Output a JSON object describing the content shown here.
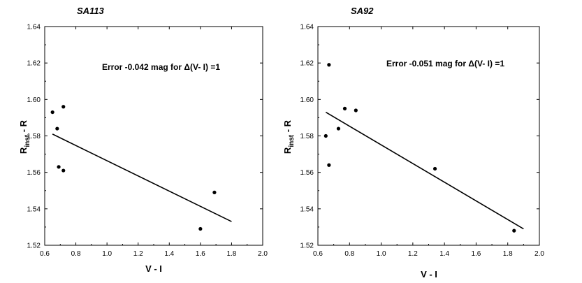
{
  "chart_data": [
    {
      "type": "scatter",
      "title": "SA113",
      "xlabel": "V - I",
      "ylabel_main": "R",
      "ylabel_sub": "inst",
      "ylabel_rest": " - R",
      "xlim": [
        0.6,
        2.0
      ],
      "ylim": [
        1.52,
        1.64
      ],
      "xticks": [
        "0.6",
        "0.8",
        "1.0",
        "1.2",
        "1.4",
        "1.6",
        "1.8",
        "2.0"
      ],
      "yticks": [
        "1.52",
        "1.54",
        "1.56",
        "1.58",
        "1.60",
        "1.62",
        "1.64"
      ],
      "annotation": "Error -0.042 mag for Δ(V- I) =1",
      "points": [
        {
          "x": 0.65,
          "y": 1.593
        },
        {
          "x": 0.68,
          "y": 1.584
        },
        {
          "x": 0.72,
          "y": 1.596
        },
        {
          "x": 0.69,
          "y": 1.563
        },
        {
          "x": 0.72,
          "y": 1.561
        },
        {
          "x": 1.6,
          "y": 1.529
        },
        {
          "x": 1.69,
          "y": 1.549
        }
      ],
      "fit": {
        "x": [
          0.65,
          1.8
        ],
        "y": [
          1.581,
          1.533
        ]
      },
      "grid": false
    },
    {
      "type": "scatter",
      "title": "SA92",
      "xlabel": "V - I",
      "ylabel_main": "R",
      "ylabel_sub": "inst",
      "ylabel_rest": " - R",
      "xlim": [
        0.6,
        2.0
      ],
      "ylim": [
        1.52,
        1.64
      ],
      "xticks": [
        "0.6",
        "0.8",
        "1.0",
        "1.2",
        "1.4",
        "1.6",
        "1.8",
        "2.0"
      ],
      "yticks": [
        "1.52",
        "1.54",
        "1.56",
        "1.58",
        "1.60",
        "1.62",
        "1.64"
      ],
      "annotation": "Error -0.051 mag for Δ(V- I) =1",
      "points": [
        {
          "x": 0.67,
          "y": 1.619
        },
        {
          "x": 0.77,
          "y": 1.595
        },
        {
          "x": 0.84,
          "y": 1.594
        },
        {
          "x": 0.73,
          "y": 1.584
        },
        {
          "x": 0.65,
          "y": 1.58
        },
        {
          "x": 0.67,
          "y": 1.564
        },
        {
          "x": 1.34,
          "y": 1.562
        },
        {
          "x": 1.84,
          "y": 1.528
        }
      ],
      "fit": {
        "x": [
          0.65,
          1.9
        ],
        "y": [
          1.593,
          1.529
        ]
      },
      "grid": false
    }
  ]
}
